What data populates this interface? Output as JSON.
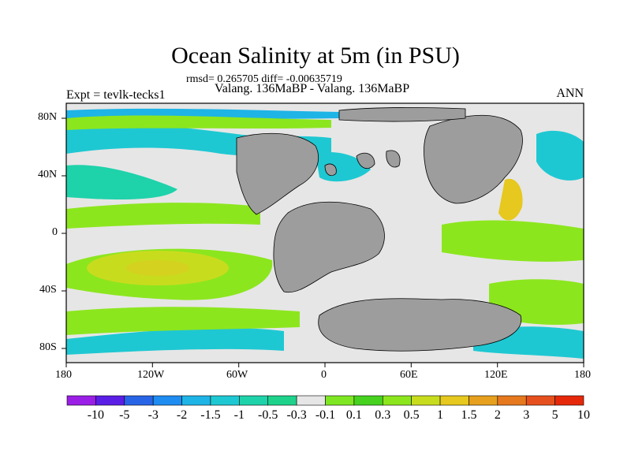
{
  "title": "Ocean Salinity at 5m (in PSU)",
  "stats": "rmsd= 0.265705 diff= -0.00635719",
  "subtitle": "Valang. 136MaBP - Valang. 136MaBP",
  "experiment": "Expt = tevlk-tecks1",
  "season": "ANN",
  "map": {
    "lon_ticks": [
      "180",
      "120W",
      "60W",
      "0",
      "60E",
      "120E",
      "180"
    ],
    "lat_ticks": [
      "80N",
      "40N",
      "0",
      "40S",
      "80S"
    ]
  },
  "colorbar": {
    "labels": [
      "-10",
      "-5",
      "-3",
      "-2",
      "-1.5",
      "-1",
      "-0.5",
      "-0.3",
      "-0.1",
      "0.1",
      "0.3",
      "0.5",
      "1",
      "1.5",
      "2",
      "3",
      "5",
      "10"
    ],
    "colors": [
      "#9a1ee6",
      "#5a1ee6",
      "#2864e6",
      "#1e8cf0",
      "#1eb4e6",
      "#1ec8d2",
      "#1ed2aa",
      "#1ed28c",
      "#e6e6e6",
      "#7ee622",
      "#46d21e",
      "#8ce61e",
      "#c8dc1e",
      "#e6c81e",
      "#e6a01e",
      "#e6781e",
      "#e6501e",
      "#e6280a"
    ]
  },
  "colors": {
    "land": "#9d9d9d",
    "neutral": "#e6e6e6",
    "fresh": "#1ec8d2",
    "salty": "#8ce61e"
  }
}
